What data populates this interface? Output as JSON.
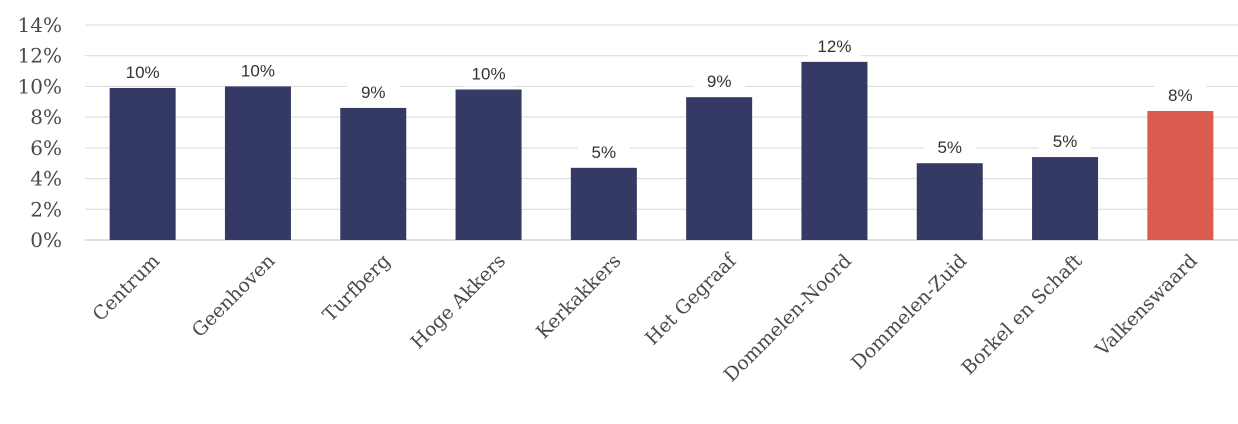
{
  "chart_data": {
    "type": "bar",
    "title": "",
    "xlabel": "",
    "ylabel": "",
    "categories": [
      "Centrum",
      "Geenhoven",
      "Turfberg",
      "Hoge Akkers",
      "Kerkakkers",
      "Het Gegraaf",
      "Dommelen-Noord",
      "Dommelen-Zuid",
      "Borkel en Schaft",
      "Valkenswaard"
    ],
    "values": [
      9.9,
      10.0,
      8.6,
      9.8,
      4.7,
      9.3,
      11.6,
      5.0,
      5.4,
      8.4
    ],
    "data_labels": [
      "10%",
      "10%",
      "9%",
      "10%",
      "5%",
      "9%",
      "12%",
      "5%",
      "5%",
      "8%"
    ],
    "y_ticks": [
      "0%",
      "2%",
      "4%",
      "6%",
      "8%",
      "10%",
      "12%",
      "14%"
    ],
    "ylim": [
      0,
      14
    ],
    "grid": true,
    "legend": "none",
    "colors": {
      "default": "#353a65",
      "highlight": "#dc5b50",
      "highlight_category": "Valkenswaard"
    }
  }
}
